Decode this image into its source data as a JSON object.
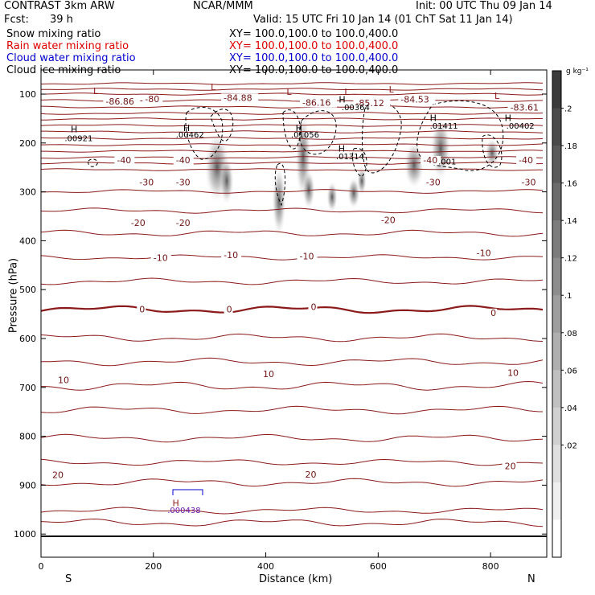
{
  "header": {
    "title": "CONTRAST  3km ARW",
    "org": "NCAR/MMM",
    "init": "Init: 00 UTC Thu 09 Jan 14",
    "fcst_label": "Fcst:",
    "fcst_value": "39 h",
    "valid": "Valid: 15 UTC Fri 10 Jan 14 (01 ChT Sat 11 Jan 14)"
  },
  "fields": [
    {
      "name": "Snow mixing ratio",
      "xy": "XY=  100.0,100.0  to  100.0,400.0",
      "color": "#000000"
    },
    {
      "name": "Rain water mixing ratio",
      "xy": "XY=  100.0,100.0  to  100.0,400.0",
      "color": "#dd0000"
    },
    {
      "name": "Cloud water mixing ratio",
      "xy": "XY=  100.0,100.0  to  100.0,400.0",
      "color": "#0000cc"
    },
    {
      "name": "Cloud ice mixing ratio",
      "xy": "XY=  100.0,100.0  to  100.0,400.0",
      "color": "#000000"
    }
  ],
  "colorbar": {
    "unit": "g kg⁻¹",
    "ticks": [
      ".2",
      ".18",
      ".16",
      ".14",
      ".12",
      ".1",
      ".08",
      ".06",
      ".04",
      ".02"
    ],
    "colors": [
      "#3a3a3a",
      "#4a4a4a",
      "#5a5a5a",
      "#6b6b6b",
      "#7c7c7c",
      "#8d8d8d",
      "#9e9e9e",
      "#afafaf",
      "#c0c0c0",
      "#d0d0d0",
      "#e0e0e0",
      "#efefef",
      "#ffffff"
    ]
  },
  "chart_data": {
    "type": "cross-section",
    "xlabel": "Distance (km)",
    "ylabel": "Pressure (hPa)",
    "xlim": [
      0,
      900
    ],
    "ylim": [
      1050,
      50
    ],
    "x_ticks": [
      0,
      200,
      400,
      600,
      800
    ],
    "y_ticks": [
      100,
      200,
      300,
      400,
      500,
      600,
      700,
      800,
      900,
      1000
    ],
    "south_label": "S",
    "north_label": "N",
    "temperature_labels": [
      {
        "text": "-80",
        "x": 185,
        "p": 115
      },
      {
        "text": "-40",
        "x": 135,
        "p": 240
      },
      {
        "text": "-40",
        "x": 240,
        "p": 240
      },
      {
        "text": "-40",
        "x": 680,
        "p": 240
      },
      {
        "text": "-40",
        "x": 850,
        "p": 240
      },
      {
        "text": "-30",
        "x": 175,
        "p": 285
      },
      {
        "text": "-30",
        "x": 240,
        "p": 285
      },
      {
        "text": "-30",
        "x": 685,
        "p": 285
      },
      {
        "text": "-30",
        "x": 855,
        "p": 285
      },
      {
        "text": "-20",
        "x": 160,
        "p": 368
      },
      {
        "text": "-20",
        "x": 240,
        "p": 368
      },
      {
        "text": "-20",
        "x": 605,
        "p": 362
      },
      {
        "text": "-10",
        "x": 200,
        "p": 440
      },
      {
        "text": "-10",
        "x": 325,
        "p": 434
      },
      {
        "text": "-10",
        "x": 460,
        "p": 436
      },
      {
        "text": "-10",
        "x": 775,
        "p": 430
      },
      {
        "text": "0",
        "x": 175,
        "p": 545
      },
      {
        "text": "0",
        "x": 330,
        "p": 545
      },
      {
        "text": "0",
        "x": 480,
        "p": 540
      },
      {
        "text": "0",
        "x": 800,
        "p": 552
      },
      {
        "text": "10",
        "x": 30,
        "p": 690
      },
      {
        "text": "10",
        "x": 395,
        "p": 677
      },
      {
        "text": "10",
        "x": 830,
        "p": 675
      },
      {
        "text": "20",
        "x": 20,
        "p": 884
      },
      {
        "text": "20",
        "x": 470,
        "p": 883
      },
      {
        "text": "20",
        "x": 825,
        "p": 866
      },
      {
        "text": "-86.86",
        "x": 115,
        "p": 120
      },
      {
        "text": "-84.88",
        "x": 325,
        "p": 112
      },
      {
        "text": "-86.16",
        "x": 465,
        "p": 122
      },
      {
        "text": "-85.12",
        "x": 560,
        "p": 123
      },
      {
        "text": "-84.53",
        "x": 640,
        "p": 116
      },
      {
        "text": "-83.61",
        "x": 835,
        "p": 132
      }
    ],
    "extrema": [
      {
        "mark": "L",
        "x": 93,
        "p": 100,
        "color": "#8b1a1a"
      },
      {
        "mark": "L",
        "x": 302,
        "p": 92,
        "color": "#8b1a1a"
      },
      {
        "mark": "L",
        "x": 437,
        "p": 102,
        "color": "#8b1a1a"
      },
      {
        "mark": "L",
        "x": 540,
        "p": 102,
        "color": "#8b1a1a"
      },
      {
        "mark": "L",
        "x": 619,
        "p": 97,
        "color": "#8b1a1a"
      },
      {
        "mark": "L",
        "x": 807,
        "p": 110,
        "color": "#8b1a1a"
      },
      {
        "mark": "H",
        "x": 53,
        "p": 178,
        "color": "#000000"
      },
      {
        "mark": "H",
        "x": 253,
        "p": 176,
        "color": "#000000"
      },
      {
        "mark": "H",
        "x": 453,
        "p": 176,
        "color": "#000000"
      },
      {
        "mark": "H",
        "x": 530,
        "p": 117,
        "color": "#000000"
      },
      {
        "mark": "H",
        "x": 529,
        "p": 218,
        "color": "#000000"
      },
      {
        "mark": "H",
        "x": 692,
        "p": 155,
        "color": "#000000"
      },
      {
        "mark": "H",
        "x": 825,
        "p": 155,
        "color": "#000000"
      },
      {
        "mark": "H",
        "x": 234,
        "p": 943,
        "color": "#8b1a1a"
      }
    ],
    "value_labels": [
      {
        "text": ".00921",
        "x": 42,
        "p": 196
      },
      {
        "text": ".00462",
        "x": 240,
        "p": 189
      },
      {
        "text": ".01056",
        "x": 445,
        "p": 189
      },
      {
        "text": ".00364",
        "x": 535,
        "p": 133
      },
      {
        "text": ".01314",
        "x": 525,
        "p": 233
      },
      {
        "text": ".01411",
        "x": 692,
        "p": 171
      },
      {
        "text": ".00402",
        "x": 828,
        "p": 171
      },
      {
        "text": ".001",
        "x": 707,
        "p": 244
      },
      {
        "text": ".000438",
        "x": 225,
        "p": 957
      }
    ]
  }
}
